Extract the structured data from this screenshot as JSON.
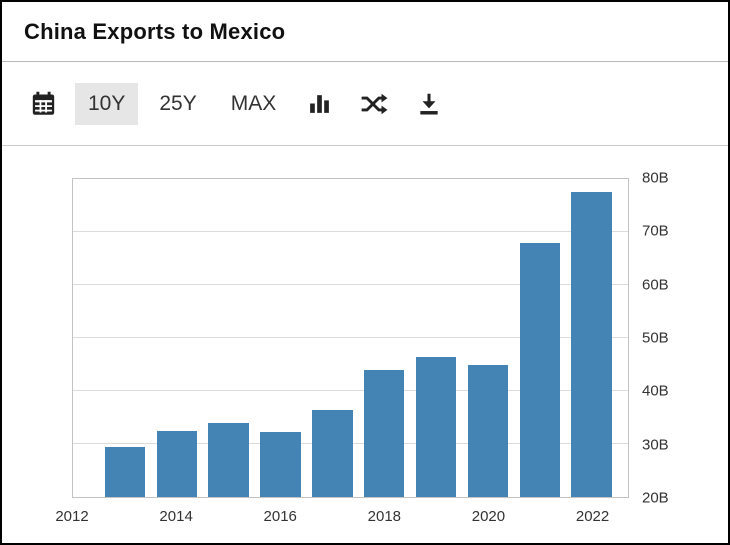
{
  "header": {
    "title": "China Exports to Mexico"
  },
  "toolbar": {
    "range_buttons": [
      {
        "label": "10Y",
        "selected": true
      },
      {
        "label": "25Y",
        "selected": false
      },
      {
        "label": "MAX",
        "selected": false
      }
    ],
    "icon_buttons": [
      "calendar-icon",
      "bar-chart-icon",
      "compare-icon",
      "download-icon"
    ]
  },
  "chart_data": {
    "type": "bar",
    "title": "China Exports to Mexico",
    "categories": [
      2013,
      2014,
      2015,
      2016,
      2017,
      2018,
      2019,
      2020,
      2021,
      2022
    ],
    "values": [
      29.5,
      32.5,
      34,
      32.3,
      36.5,
      44,
      46.5,
      45,
      68,
      77.5
    ],
    "value_unit": "B",
    "bar_color": "#4484b4",
    "grid": true,
    "legend": "none",
    "ylim": [
      20,
      80
    ],
    "xlim": [
      2012,
      2022.7
    ],
    "bar_width_years": 0.78,
    "y_ticks": [
      {
        "value": 20,
        "label": "20B"
      },
      {
        "value": 30,
        "label": "30B"
      },
      {
        "value": 40,
        "label": "40B"
      },
      {
        "value": 50,
        "label": "50B"
      },
      {
        "value": 60,
        "label": "60B"
      },
      {
        "value": 70,
        "label": "70B"
      },
      {
        "value": 80,
        "label": "80B"
      }
    ],
    "x_ticks": [
      {
        "value": 2012,
        "label": "2012"
      },
      {
        "value": 2014,
        "label": "2014"
      },
      {
        "value": 2016,
        "label": "2016"
      },
      {
        "value": 2018,
        "label": "2018"
      },
      {
        "value": 2020,
        "label": "2020"
      },
      {
        "value": 2022,
        "label": "2022"
      }
    ]
  }
}
